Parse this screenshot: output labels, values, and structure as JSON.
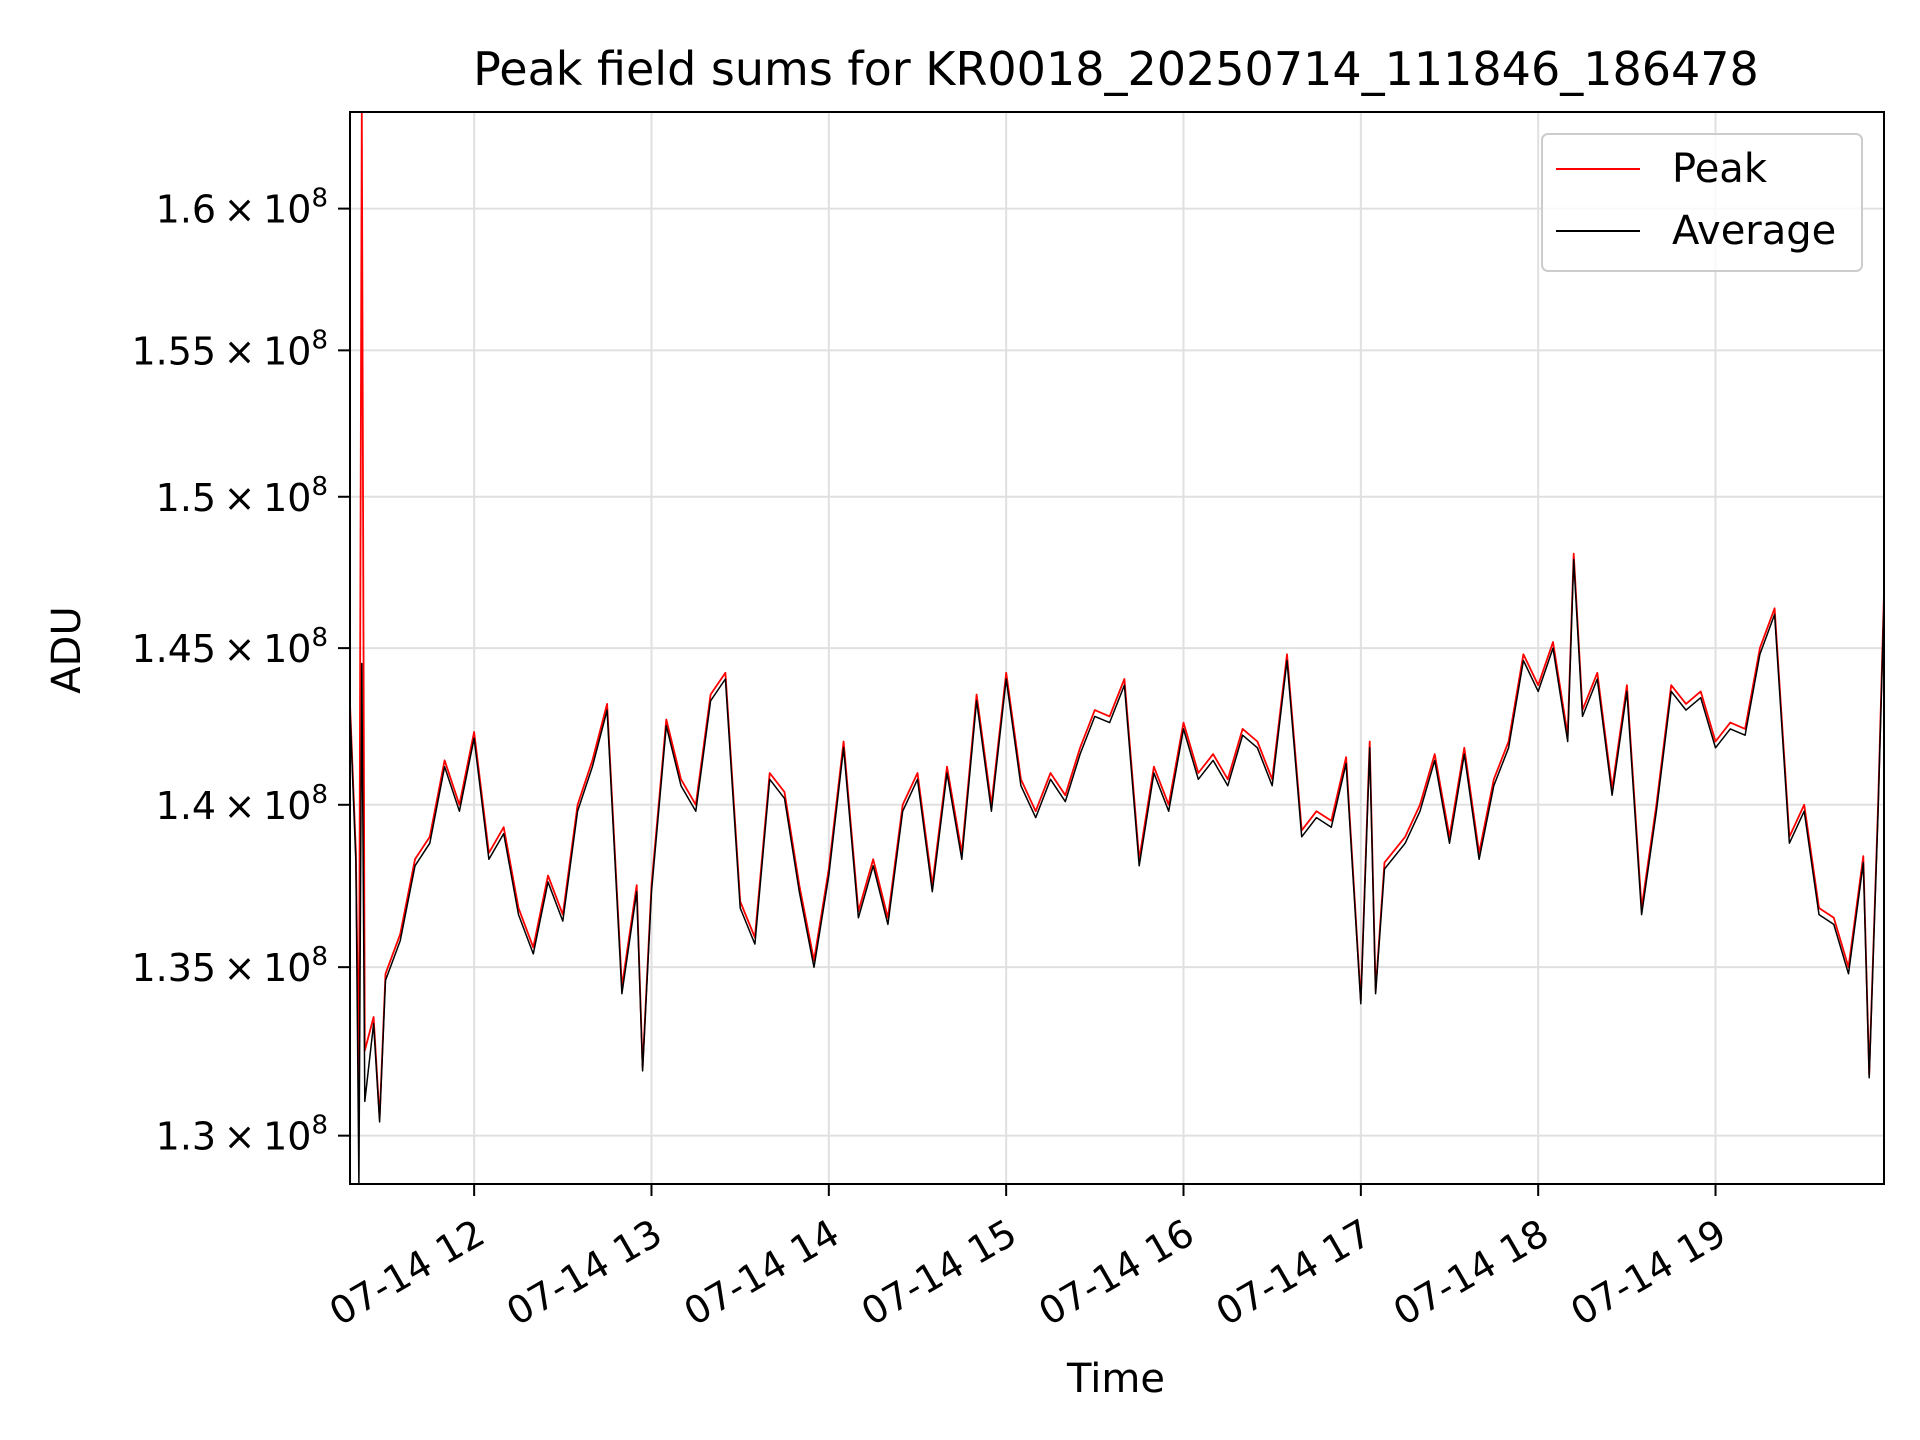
{
  "chart_data": {
    "type": "line",
    "title": "Peak field sums for KR0018_20250714_111846_186478",
    "xlabel": "Time",
    "ylabel": "ADU",
    "y_scale": "log",
    "x_range": [
      "07-14 11:18",
      "07-14 19:57"
    ],
    "ylim": [
      128600000,
      163500000
    ],
    "x_ticks": [
      "07-14 12",
      "07-14 13",
      "07-14 14",
      "07-14 15",
      "07-14 16",
      "07-14 17",
      "07-14 18",
      "07-14 19"
    ],
    "x_tick_times": [
      "07-14 12:00",
      "07-14 13:00",
      "07-14 14:00",
      "07-14 15:00",
      "07-14 16:00",
      "07-14 17:00",
      "07-14 18:00",
      "07-14 19:00"
    ],
    "y_ticks": [
      130000000,
      135000000,
      140000000,
      145000000,
      150000000,
      155000000,
      160000000
    ],
    "y_tick_labels": [
      {
        "mantissa": "1.3",
        "exp": "8"
      },
      {
        "mantissa": "1.35",
        "exp": "8"
      },
      {
        "mantissa": "1.4",
        "exp": "8"
      },
      {
        "mantissa": "1.45",
        "exp": "8"
      },
      {
        "mantissa": "1.5",
        "exp": "8"
      },
      {
        "mantissa": "1.55",
        "exp": "8"
      },
      {
        "mantissa": "1.6",
        "exp": "8"
      }
    ],
    "grid": true,
    "legend_position": "top-right",
    "series": [
      {
        "name": "Peak",
        "color": "#ff0000",
        "points": [
          [
            "07-14 11:18",
            143200000
          ],
          [
            "07-14 11:20",
            138500000
          ],
          [
            "07-14 11:21",
            131500000
          ],
          [
            "07-14 11:22",
            163500000
          ],
          [
            "07-14 11:23",
            132500000
          ],
          [
            "07-14 11:26",
            133500000
          ],
          [
            "07-14 11:28",
            130500000
          ],
          [
            "07-14 11:30",
            134800000
          ],
          [
            "07-14 11:35",
            136000000
          ],
          [
            "07-14 11:40",
            138300000
          ],
          [
            "07-14 11:45",
            139000000
          ],
          [
            "07-14 11:50",
            141400000
          ],
          [
            "07-14 11:55",
            140000000
          ],
          [
            "07-14 12:00",
            142300000
          ],
          [
            "07-14 12:05",
            138500000
          ],
          [
            "07-14 12:10",
            139300000
          ],
          [
            "07-14 12:15",
            136800000
          ],
          [
            "07-14 12:20",
            135600000
          ],
          [
            "07-14 12:25",
            137800000
          ],
          [
            "07-14 12:30",
            136600000
          ],
          [
            "07-14 12:35",
            140000000
          ],
          [
            "07-14 12:40",
            141400000
          ],
          [
            "07-14 12:45",
            143200000
          ],
          [
            "07-14 12:50",
            134400000
          ],
          [
            "07-14 12:55",
            137500000
          ],
          [
            "07-14 12:57",
            132000000
          ],
          [
            "07-14 13:00",
            137500000
          ],
          [
            "07-14 13:05",
            142700000
          ],
          [
            "07-14 13:10",
            140800000
          ],
          [
            "07-14 13:15",
            140000000
          ],
          [
            "07-14 13:20",
            143500000
          ],
          [
            "07-14 13:25",
            144200000
          ],
          [
            "07-14 13:30",
            137000000
          ],
          [
            "07-14 13:35",
            135900000
          ],
          [
            "07-14 13:40",
            141000000
          ],
          [
            "07-14 13:45",
            140400000
          ],
          [
            "07-14 13:50",
            137500000
          ],
          [
            "07-14 13:55",
            135200000
          ],
          [
            "07-14 14:00",
            138000000
          ],
          [
            "07-14 14:05",
            142000000
          ],
          [
            "07-14 14:10",
            136700000
          ],
          [
            "07-14 14:15",
            138300000
          ],
          [
            "07-14 14:20",
            136500000
          ],
          [
            "07-14 14:25",
            140000000
          ],
          [
            "07-14 14:30",
            141000000
          ],
          [
            "07-14 14:35",
            137500000
          ],
          [
            "07-14 14:40",
            141200000
          ],
          [
            "07-14 14:45",
            138500000
          ],
          [
            "07-14 14:50",
            143500000
          ],
          [
            "07-14 14:55",
            140000000
          ],
          [
            "07-14 15:00",
            144200000
          ],
          [
            "07-14 15:05",
            140800000
          ],
          [
            "07-14 15:10",
            139800000
          ],
          [
            "07-14 15:15",
            141000000
          ],
          [
            "07-14 15:20",
            140300000
          ],
          [
            "07-14 15:25",
            141800000
          ],
          [
            "07-14 15:30",
            143000000
          ],
          [
            "07-14 15:35",
            142800000
          ],
          [
            "07-14 15:40",
            144000000
          ],
          [
            "07-14 15:45",
            138300000
          ],
          [
            "07-14 15:50",
            141200000
          ],
          [
            "07-14 15:55",
            140000000
          ],
          [
            "07-14 16:00",
            142600000
          ],
          [
            "07-14 16:05",
            141000000
          ],
          [
            "07-14 16:10",
            141600000
          ],
          [
            "07-14 16:15",
            140800000
          ],
          [
            "07-14 16:20",
            142400000
          ],
          [
            "07-14 16:25",
            142000000
          ],
          [
            "07-14 16:30",
            140800000
          ],
          [
            "07-14 16:35",
            144800000
          ],
          [
            "07-14 16:40",
            139200000
          ],
          [
            "07-14 16:45",
            139800000
          ],
          [
            "07-14 16:50",
            139500000
          ],
          [
            "07-14 16:55",
            141500000
          ],
          [
            "07-14 17:00",
            134000000
          ],
          [
            "07-14 17:03",
            142000000
          ],
          [
            "07-14 17:05",
            134300000
          ],
          [
            "07-14 17:08",
            138200000
          ],
          [
            "07-14 17:15",
            139000000
          ],
          [
            "07-14 17:20",
            140000000
          ],
          [
            "07-14 17:25",
            141600000
          ],
          [
            "07-14 17:30",
            139000000
          ],
          [
            "07-14 17:35",
            141800000
          ],
          [
            "07-14 17:40",
            138500000
          ],
          [
            "07-14 17:45",
            140800000
          ],
          [
            "07-14 17:50",
            142000000
          ],
          [
            "07-14 17:55",
            144800000
          ],
          [
            "07-14 18:00",
            143800000
          ],
          [
            "07-14 18:05",
            145200000
          ],
          [
            "07-14 18:10",
            142200000
          ],
          [
            "07-14 18:12",
            148100000
          ],
          [
            "07-14 18:15",
            143000000
          ],
          [
            "07-14 18:20",
            144200000
          ],
          [
            "07-14 18:25",
            140500000
          ],
          [
            "07-14 18:30",
            143800000
          ],
          [
            "07-14 18:35",
            136800000
          ],
          [
            "07-14 18:40",
            140000000
          ],
          [
            "07-14 18:45",
            143800000
          ],
          [
            "07-14 18:50",
            143200000
          ],
          [
            "07-14 18:55",
            143600000
          ],
          [
            "07-14 19:00",
            142000000
          ],
          [
            "07-14 19:05",
            142600000
          ],
          [
            "07-14 19:10",
            142400000
          ],
          [
            "07-14 19:15",
            145000000
          ],
          [
            "07-14 19:20",
            146300000
          ],
          [
            "07-14 19:25",
            139000000
          ],
          [
            "07-14 19:30",
            140000000
          ],
          [
            "07-14 19:35",
            136800000
          ],
          [
            "07-14 19:40",
            136500000
          ],
          [
            "07-14 19:45",
            135000000
          ],
          [
            "07-14 19:50",
            138400000
          ],
          [
            "07-14 19:52",
            131800000
          ],
          [
            "07-14 19:55",
            140000000
          ],
          [
            "07-14 19:57",
            146800000
          ]
        ]
      },
      {
        "name": "Average",
        "color": "#000000",
        "points": [
          [
            "07-14 11:18",
            143000000
          ],
          [
            "07-14 11:20",
            138200000
          ],
          [
            "07-14 11:21",
            128600000
          ],
          [
            "07-14 11:22",
            144500000
          ],
          [
            "07-14 11:23",
            131000000
          ],
          [
            "07-14 11:26",
            133300000
          ],
          [
            "07-14 11:28",
            130400000
          ],
          [
            "07-14 11:30",
            134600000
          ],
          [
            "07-14 11:35",
            135800000
          ],
          [
            "07-14 11:40",
            138100000
          ],
          [
            "07-14 11:45",
            138800000
          ],
          [
            "07-14 11:50",
            141200000
          ],
          [
            "07-14 11:55",
            139800000
          ],
          [
            "07-14 12:00",
            142100000
          ],
          [
            "07-14 12:05",
            138300000
          ],
          [
            "07-14 12:10",
            139100000
          ],
          [
            "07-14 12:15",
            136600000
          ],
          [
            "07-14 12:20",
            135400000
          ],
          [
            "07-14 12:25",
            137600000
          ],
          [
            "07-14 12:30",
            136400000
          ],
          [
            "07-14 12:35",
            139800000
          ],
          [
            "07-14 12:40",
            141200000
          ],
          [
            "07-14 12:45",
            143000000
          ],
          [
            "07-14 12:50",
            134200000
          ],
          [
            "07-14 12:55",
            137300000
          ],
          [
            "07-14 12:57",
            131900000
          ],
          [
            "07-14 13:00",
            137300000
          ],
          [
            "07-14 13:05",
            142500000
          ],
          [
            "07-14 13:10",
            140600000
          ],
          [
            "07-14 13:15",
            139800000
          ],
          [
            "07-14 13:20",
            143300000
          ],
          [
            "07-14 13:25",
            144000000
          ],
          [
            "07-14 13:30",
            136800000
          ],
          [
            "07-14 13:35",
            135700000
          ],
          [
            "07-14 13:40",
            140800000
          ],
          [
            "07-14 13:45",
            140200000
          ],
          [
            "07-14 13:50",
            137300000
          ],
          [
            "07-14 13:55",
            135000000
          ],
          [
            "07-14 14:00",
            137800000
          ],
          [
            "07-14 14:05",
            141800000
          ],
          [
            "07-14 14:10",
            136500000
          ],
          [
            "07-14 14:15",
            138100000
          ],
          [
            "07-14 14:20",
            136300000
          ],
          [
            "07-14 14:25",
            139800000
          ],
          [
            "07-14 14:30",
            140800000
          ],
          [
            "07-14 14:35",
            137300000
          ],
          [
            "07-14 14:40",
            141000000
          ],
          [
            "07-14 14:45",
            138300000
          ],
          [
            "07-14 14:50",
            143300000
          ],
          [
            "07-14 14:55",
            139800000
          ],
          [
            "07-14 15:00",
            144000000
          ],
          [
            "07-14 15:05",
            140600000
          ],
          [
            "07-14 15:10",
            139600000
          ],
          [
            "07-14 15:15",
            140800000
          ],
          [
            "07-14 15:20",
            140100000
          ],
          [
            "07-14 15:25",
            141600000
          ],
          [
            "07-14 15:30",
            142800000
          ],
          [
            "07-14 15:35",
            142600000
          ],
          [
            "07-14 15:40",
            143800000
          ],
          [
            "07-14 15:45",
            138100000
          ],
          [
            "07-14 15:50",
            141000000
          ],
          [
            "07-14 15:55",
            139800000
          ],
          [
            "07-14 16:00",
            142400000
          ],
          [
            "07-14 16:05",
            140800000
          ],
          [
            "07-14 16:10",
            141400000
          ],
          [
            "07-14 16:15",
            140600000
          ],
          [
            "07-14 16:20",
            142200000
          ],
          [
            "07-14 16:25",
            141800000
          ],
          [
            "07-14 16:30",
            140600000
          ],
          [
            "07-14 16:35",
            144600000
          ],
          [
            "07-14 16:40",
            139000000
          ],
          [
            "07-14 16:45",
            139600000
          ],
          [
            "07-14 16:50",
            139300000
          ],
          [
            "07-14 16:55",
            141300000
          ],
          [
            "07-14 17:00",
            133900000
          ],
          [
            "07-14 17:03",
            141800000
          ],
          [
            "07-14 17:05",
            134200000
          ],
          [
            "07-14 17:08",
            138000000
          ],
          [
            "07-14 17:15",
            138800000
          ],
          [
            "07-14 17:20",
            139800000
          ],
          [
            "07-14 17:25",
            141400000
          ],
          [
            "07-14 17:30",
            138800000
          ],
          [
            "07-14 17:35",
            141600000
          ],
          [
            "07-14 17:40",
            138300000
          ],
          [
            "07-14 17:45",
            140600000
          ],
          [
            "07-14 17:50",
            141800000
          ],
          [
            "07-14 17:55",
            144600000
          ],
          [
            "07-14 18:00",
            143600000
          ],
          [
            "07-14 18:05",
            145000000
          ],
          [
            "07-14 18:10",
            142000000
          ],
          [
            "07-14 18:12",
            147900000
          ],
          [
            "07-14 18:15",
            142800000
          ],
          [
            "07-14 18:20",
            144000000
          ],
          [
            "07-14 18:25",
            140300000
          ],
          [
            "07-14 18:30",
            143600000
          ],
          [
            "07-14 18:35",
            136600000
          ],
          [
            "07-14 18:40",
            139800000
          ],
          [
            "07-14 18:45",
            143600000
          ],
          [
            "07-14 18:50",
            143000000
          ],
          [
            "07-14 18:55",
            143400000
          ],
          [
            "07-14 19:00",
            141800000
          ],
          [
            "07-14 19:05",
            142400000
          ],
          [
            "07-14 19:10",
            142200000
          ],
          [
            "07-14 19:15",
            144800000
          ],
          [
            "07-14 19:20",
            146100000
          ],
          [
            "07-14 19:25",
            138800000
          ],
          [
            "07-14 19:30",
            139800000
          ],
          [
            "07-14 19:35",
            136600000
          ],
          [
            "07-14 19:40",
            136300000
          ],
          [
            "07-14 19:45",
            134800000
          ],
          [
            "07-14 19:50",
            138200000
          ],
          [
            "07-14 19:52",
            131700000
          ],
          [
            "07-14 19:55",
            139800000
          ],
          [
            "07-14 19:57",
            146500000
          ]
        ]
      }
    ]
  }
}
